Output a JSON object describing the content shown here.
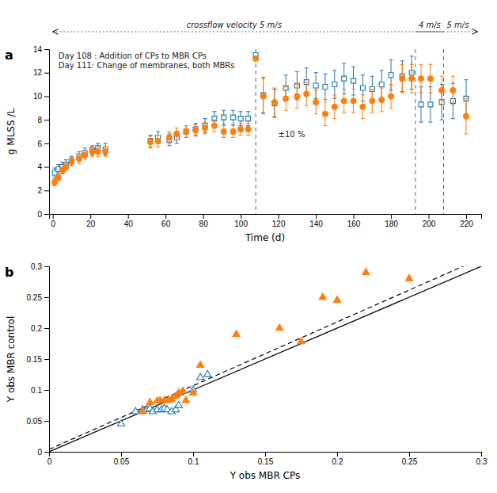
{
  "chart_data": [
    {
      "type": "scatter",
      "title": "a",
      "xlabel": "Time (d)",
      "ylabel": "g MLSS /L",
      "xlim": [
        -2,
        228
      ],
      "ylim": [
        0,
        14
      ],
      "xticks": [
        0,
        20,
        40,
        60,
        80,
        100,
        120,
        140,
        160,
        180,
        200,
        220
      ],
      "yticks": [
        0,
        2,
        4,
        6,
        8,
        10,
        12,
        14
      ],
      "grid": false,
      "series": [
        {
          "type": "scatter",
          "marker": "open-square",
          "x": [
            1,
            3,
            5,
            7,
            10,
            14,
            17,
            21,
            24,
            28,
            52,
            56,
            62,
            66,
            71,
            76,
            81,
            86,
            91,
            96,
            100,
            104,
            108,
            112,
            118,
            124,
            130,
            135,
            140,
            145,
            150,
            155,
            160,
            165,
            170,
            175,
            180,
            186,
            191,
            196,
            201,
            207,
            213,
            220
          ],
          "values": [
            3.5,
            3.8,
            4.0,
            4.2,
            4.5,
            4.9,
            5.2,
            5.4,
            5.6,
            5.5,
            6.2,
            6.5,
            6.3,
            6.5,
            7.0,
            7.2,
            7.5,
            8.1,
            8.2,
            8.2,
            8.1,
            8.1,
            13.5,
            10.1,
            9.4,
            10.7,
            10.9,
            11.2,
            10.9,
            10.8,
            11.0,
            11.5,
            11.3,
            10.7,
            10.6,
            11.0,
            11.8,
            11.7,
            12.0,
            9.3,
            9.3,
            9.5,
            9.6,
            9.8
          ],
          "errors": [
            0.4,
            0.4,
            0.4,
            0.4,
            0.4,
            0.4,
            0.4,
            0.4,
            0.4,
            0.5,
            0.5,
            0.5,
            0.5,
            0.5,
            0.5,
            0.5,
            0.6,
            0.6,
            0.6,
            0.6,
            0.6,
            0.6,
            0.0,
            1.5,
            1.2,
            1.1,
            1.2,
            1.2,
            1.1,
            1.1,
            1.2,
            1.3,
            1.2,
            1.1,
            1.1,
            1.2,
            1.3,
            1.3,
            1.4,
            1.5,
            1.5,
            1.5,
            1.5,
            1.6
          ]
        },
        {
          "type": "scatter",
          "marker": "circle",
          "x": [
            1,
            3,
            5,
            7,
            10,
            14,
            17,
            21,
            24,
            28,
            52,
            56,
            62,
            66,
            71,
            76,
            81,
            86,
            91,
            96,
            100,
            104,
            108,
            112,
            118,
            124,
            130,
            135,
            140,
            145,
            150,
            155,
            160,
            165,
            170,
            175,
            180,
            186,
            191,
            196,
            201,
            207,
            213,
            220
          ],
          "values": [
            2.7,
            3.1,
            3.7,
            4.0,
            4.5,
            4.7,
            5.0,
            5.3,
            5.3,
            5.3,
            6.1,
            6.2,
            6.5,
            6.8,
            7.0,
            7.1,
            7.3,
            7.5,
            7.0,
            7.0,
            7.2,
            7.2,
            13.2,
            10.0,
            9.5,
            9.8,
            10.0,
            10.2,
            9.5,
            8.5,
            9.1,
            9.6,
            9.6,
            9.1,
            9.6,
            9.7,
            10.0,
            11.5,
            11.5,
            11.5,
            11.5,
            10.5,
            10.5,
            8.3
          ],
          "errors": [
            0.3,
            0.3,
            0.3,
            0.3,
            0.3,
            0.4,
            0.4,
            0.4,
            0.4,
            0.4,
            0.5,
            0.5,
            0.5,
            0.5,
            0.5,
            0.5,
            0.5,
            0.5,
            0.5,
            0.5,
            0.5,
            0.5,
            0.0,
            1.5,
            1.2,
            1.0,
            1.0,
            1.0,
            1.0,
            1.0,
            1.0,
            1.0,
            1.0,
            1.0,
            1.0,
            1.0,
            1.0,
            1.2,
            1.2,
            1.2,
            1.2,
            1.2,
            1.2,
            1.5
          ]
        }
      ],
      "vlines": [
        108,
        193,
        208
      ],
      "annotations": [
        {
          "text": "Day 108 : Addition of CPs to MBR CPs",
          "x": 3,
          "y": 13.7
        },
        {
          "text": "Day 111: Change of membranes, both MBRs",
          "x": 3,
          "y": 12.9
        },
        {
          "text": "±10 %",
          "x": 120,
          "y": 7.0
        }
      ],
      "crossflow": [
        {
          "label": "crossflow velocity 5 m/s",
          "from": 0,
          "to": 193,
          "line_style": "dotted"
        },
        {
          "label": "4 m/s",
          "from": 193,
          "to": 208,
          "line_style": "solid"
        },
        {
          "label": "5 m/s",
          "from": 208,
          "to": 226,
          "line_style": "dotted"
        }
      ]
    },
    {
      "type": "scatter",
      "title": "b",
      "xlabel": "Y obs MBR CPs",
      "ylabel": "Y obs MBR control",
      "xlim": [
        0,
        0.3
      ],
      "ylim": [
        0,
        0.3
      ],
      "xticks": [
        0,
        0.05,
        0.1,
        0.15,
        0.2,
        0.25,
        0.3
      ],
      "yticks": [
        0,
        0.05,
        0.1,
        0.15,
        0.2,
        0.25,
        0.3
      ],
      "grid": false,
      "series": [
        {
          "type": "scatter",
          "marker": "open-triangle",
          "x": [
            0.05,
            0.06,
            0.065,
            0.068,
            0.07,
            0.072,
            0.075,
            0.078,
            0.08,
            0.082,
            0.085,
            0.088,
            0.09,
            0.1,
            0.105,
            0.11
          ],
          "values": [
            0.045,
            0.065,
            0.068,
            0.068,
            0.07,
            0.065,
            0.068,
            0.068,
            0.07,
            0.068,
            0.065,
            0.068,
            0.075,
            0.1,
            0.12,
            0.125
          ]
        },
        {
          "type": "scatter",
          "marker": "triangle",
          "x": [
            0.065,
            0.07,
            0.075,
            0.077,
            0.08,
            0.083,
            0.085,
            0.088,
            0.09,
            0.093,
            0.095,
            0.1,
            0.105,
            0.13,
            0.16,
            0.175,
            0.19,
            0.2,
            0.22,
            0.25
          ],
          "values": [
            0.065,
            0.08,
            0.082,
            0.083,
            0.083,
            0.083,
            0.085,
            0.09,
            0.095,
            0.098,
            0.083,
            0.095,
            0.14,
            0.19,
            0.2,
            0.178,
            0.25,
            0.245,
            0.29,
            0.28
          ]
        },
        {
          "type": "line",
          "line_style": "solid",
          "x": [
            0,
            0.3
          ],
          "values": [
            0,
            0.3
          ]
        },
        {
          "type": "line",
          "line_style": "dashed",
          "slope": 1.03,
          "intercept": 0.004
        }
      ]
    }
  ]
}
